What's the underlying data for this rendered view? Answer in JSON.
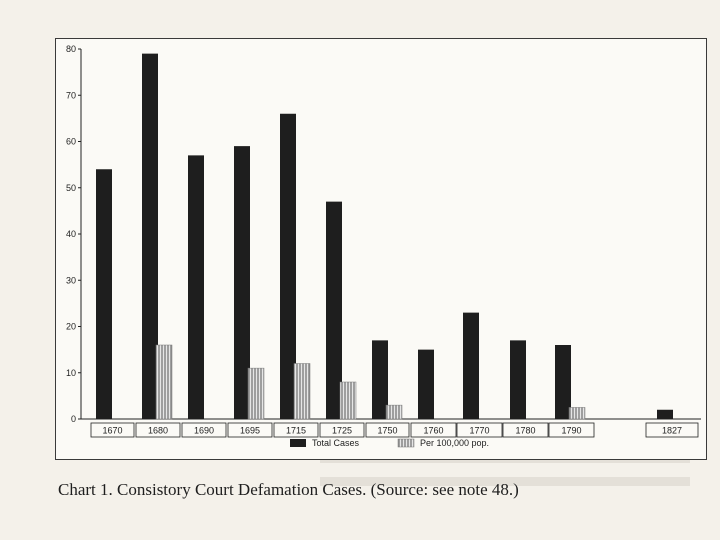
{
  "caption": "Chart 1. Consistory Court Defamation Cases. (Source: see note 48.)",
  "chart_data": {
    "type": "bar",
    "title": "",
    "xlabel": "",
    "ylabel": "",
    "categories": [
      "1670",
      "1680",
      "1690",
      "1695",
      "1715",
      "1725",
      "1750",
      "1760",
      "1770",
      "1780",
      "1790",
      "1827"
    ],
    "series": [
      {
        "name": "Total Cases",
        "values": [
          54,
          79,
          57,
          59,
          66,
          47,
          17,
          15,
          23,
          17,
          16,
          2
        ],
        "color": "#1e1e1e",
        "pattern": "solid"
      },
      {
        "name": "Per 100,000 pop.",
        "values": [
          null,
          16,
          null,
          11,
          12,
          8,
          3,
          null,
          null,
          null,
          2.5,
          null
        ],
        "color": "#9a9a9a",
        "pattern": "vertical-hatch"
      }
    ],
    "ylim": [
      0,
      80
    ],
    "yticks": [
      0,
      10,
      20,
      30,
      40,
      50,
      60,
      70,
      80
    ],
    "grid": false,
    "legend": "bottom-center"
  }
}
